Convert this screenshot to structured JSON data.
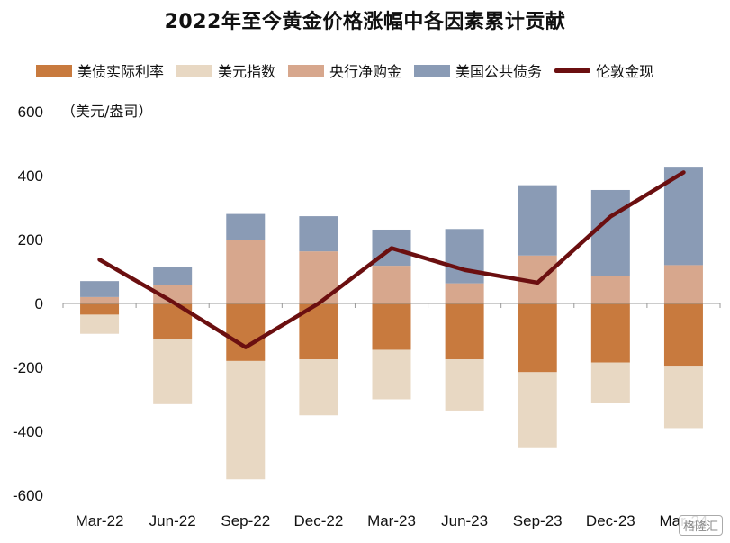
{
  "chart_data": {
    "type": "bar",
    "title": "2022年至今黄金价格涨幅中各因素累计贡献",
    "unit_label": "（美元/盎司）",
    "categories": [
      "Mar-22",
      "Jun-22",
      "Sep-22",
      "Dec-22",
      "Mar-23",
      "Jun-23",
      "Sep-23",
      "Dec-23",
      "Mar-24"
    ],
    "ylim": [
      -600,
      600
    ],
    "yticks": [
      600,
      400,
      200,
      0,
      -200,
      -400,
      -600
    ],
    "stacked": true,
    "series": [
      {
        "name": "美债实际利率",
        "color": "#C87A3E",
        "values": [
          -35,
          -110,
          -180,
          -175,
          -145,
          -175,
          -215,
          -185,
          -195
        ]
      },
      {
        "name": "美元指数",
        "color": "#E8D8C3",
        "values": [
          -60,
          -205,
          -370,
          -175,
          -155,
          -160,
          -235,
          -125,
          -195
        ]
      },
      {
        "name": "央行净购金",
        "color": "#D7A78D",
        "values": [
          20,
          58,
          198,
          163,
          118,
          63,
          150,
          87,
          120
        ]
      },
      {
        "name": "美国公共债务",
        "color": "#8A9BB5",
        "values": [
          50,
          57,
          82,
          110,
          113,
          170,
          220,
          268,
          305
        ]
      },
      {
        "name": "伦敦金现",
        "color": "#6B0F10",
        "type": "line",
        "values": [
          137,
          5,
          -137,
          0,
          173,
          105,
          65,
          272,
          410
        ]
      }
    ]
  },
  "watermark": "格隆汇"
}
